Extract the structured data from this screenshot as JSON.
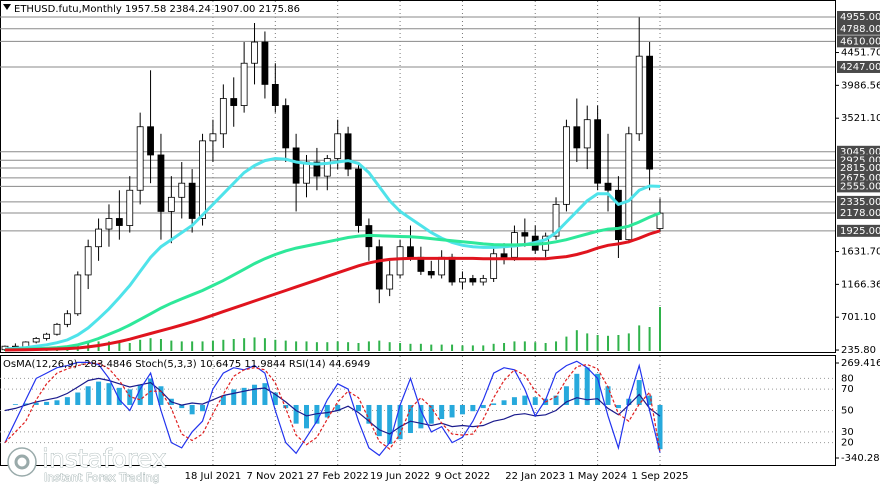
{
  "chart_data": [
    {
      "type": "candlestick",
      "title": "ETHUSD.futu,Monthly  1957.58 2384.24 1907.00 2175.86",
      "categories": [
        null,
        null,
        null,
        null,
        null,
        null,
        null,
        null,
        null,
        null,
        null,
        null,
        null,
        null,
        null,
        null,
        null,
        null,
        null,
        null,
        "18 Jul 2021",
        null,
        null,
        null,
        null,
        null,
        "7 Nov 2021",
        null,
        null,
        null,
        null,
        null,
        "27 Feb 2022",
        null,
        null,
        null,
        null,
        null,
        "19 Jun 2022",
        null,
        null,
        null,
        null,
        null,
        "9 Oct 2022",
        null,
        null,
        null,
        null,
        null,
        null,
        "22 Jan 2023",
        null,
        null,
        null,
        null,
        null,
        "1 May 2024",
        null,
        null,
        null,
        null,
        null,
        "1 Sep 2025"
      ],
      "ohlc": [
        [
          240,
          300,
          236,
          290
        ],
        [
          290,
          330,
          250,
          270
        ],
        [
          270,
          360,
          260,
          350
        ],
        [
          350,
          420,
          330,
          400
        ],
        [
          400,
          480,
          370,
          460
        ],
        [
          460,
          620,
          440,
          600
        ],
        [
          600,
          800,
          560,
          750
        ],
        [
          750,
          1350,
          720,
          1300
        ],
        [
          1300,
          1800,
          1100,
          1700
        ],
        [
          1700,
          2100,
          1500,
          1950
        ],
        [
          1950,
          2300,
          1700,
          2100
        ],
        [
          2100,
          2500,
          1800,
          2000
        ],
        [
          2000,
          2700,
          1900,
          2500
        ],
        [
          2500,
          3600,
          2300,
          3400
        ],
        [
          3400,
          4200,
          2600,
          3000
        ],
        [
          3000,
          3300,
          1800,
          2200
        ],
        [
          2200,
          2700,
          1750,
          2400
        ],
        [
          2400,
          2900,
          2100,
          2600
        ],
        [
          2600,
          2800,
          1900,
          2100
        ],
        [
          2100,
          3300,
          2000,
          3200
        ],
        [
          3200,
          3500,
          2900,
          3300
        ],
        [
          3300,
          4000,
          3100,
          3800
        ],
        [
          3800,
          4100,
          3400,
          3700
        ],
        [
          3700,
          4600,
          3600,
          4300
        ],
        [
          4300,
          4870,
          4000,
          4600
        ],
        [
          4600,
          4750,
          3800,
          4000
        ],
        [
          4000,
          4300,
          3600,
          3700
        ],
        [
          3700,
          3800,
          2900,
          3100
        ],
        [
          3100,
          3300,
          2200,
          2600
        ],
        [
          2600,
          3000,
          2400,
          2900
        ],
        [
          2900,
          3100,
          2500,
          2700
        ],
        [
          2700,
          3000,
          2500,
          2950
        ],
        [
          2950,
          3500,
          2800,
          3300
        ],
        [
          3300,
          3400,
          2700,
          2800
        ],
        [
          2800,
          2900,
          1900,
          2000
        ],
        [
          2000,
          2100,
          1500,
          1700
        ],
        [
          1700,
          1800,
          900,
          1100
        ],
        [
          1100,
          1500,
          1000,
          1300
        ],
        [
          1300,
          1800,
          1250,
          1700
        ],
        [
          1700,
          2000,
          1500,
          1550
        ],
        [
          1550,
          1700,
          1300,
          1350
        ],
        [
          1350,
          1500,
          1250,
          1300
        ],
        [
          1300,
          1650,
          1250,
          1550
        ],
        [
          1550,
          1600,
          1150,
          1200
        ],
        [
          1200,
          1350,
          1100,
          1250
        ],
        [
          1250,
          1300,
          1150,
          1200
        ],
        [
          1200,
          1300,
          1150,
          1250
        ],
        [
          1250,
          1700,
          1200,
          1600
        ],
        [
          1600,
          1750,
          1450,
          1550
        ],
        [
          1550,
          2000,
          1500,
          1900
        ],
        [
          1900,
          2100,
          1700,
          1850
        ],
        [
          1850,
          2000,
          1600,
          1650
        ],
        [
          1650,
          1900,
          1550,
          1850
        ],
        [
          1850,
          2400,
          1800,
          2300
        ],
        [
          2300,
          3500,
          2200,
          3400
        ],
        [
          3400,
          3800,
          2900,
          3100
        ],
        [
          3100,
          3700,
          2800,
          3500
        ],
        [
          3500,
          3700,
          2500,
          2600
        ],
        [
          2600,
          3300,
          2200,
          2500
        ],
        [
          2500,
          2700,
          1540,
          1800
        ],
        [
          1800,
          3400,
          1750,
          3300
        ],
        [
          3300,
          4950,
          3200,
          4400
        ],
        [
          4400,
          4600,
          2500,
          2800
        ],
        [
          1957.58,
          2384.24,
          1907,
          2175.86
        ]
      ],
      "series": [
        {
          "color": "#4fe3ea",
          "values": [
            250,
            260,
            270,
            290,
            310,
            340,
            380,
            450,
            550,
            680,
            820,
            980,
            1150,
            1350,
            1550,
            1700,
            1800,
            1900,
            2000,
            2150,
            2300,
            2450,
            2600,
            2750,
            2850,
            2920,
            2950,
            2940,
            2900,
            2880,
            2870,
            2880,
            2900,
            2920,
            2880,
            2750,
            2550,
            2350,
            2200,
            2100,
            2000,
            1900,
            1820,
            1760,
            1720,
            1700,
            1690,
            1690,
            1700,
            1710,
            1730,
            1760,
            1800,
            1900,
            2050,
            2200,
            2350,
            2450,
            2450,
            2300,
            2350,
            2500,
            2560,
            2555
          ]
        },
        {
          "color": "#2ee89a",
          "values": [
            240,
            245,
            250,
            255,
            260,
            270,
            285,
            310,
            350,
            400,
            460,
            520,
            590,
            670,
            750,
            830,
            900,
            960,
            1020,
            1080,
            1150,
            1220,
            1300,
            1380,
            1460,
            1530,
            1590,
            1640,
            1680,
            1710,
            1740,
            1770,
            1800,
            1830,
            1850,
            1860,
            1855,
            1850,
            1845,
            1840,
            1830,
            1815,
            1800,
            1785,
            1770,
            1755,
            1740,
            1730,
            1725,
            1725,
            1730,
            1735,
            1745,
            1770,
            1800,
            1840,
            1880,
            1920,
            1950,
            1960,
            1990,
            2050,
            2120,
            2178
          ]
        },
        {
          "color": "#e0141e",
          "values": [
            236,
            238,
            240,
            243,
            246,
            250,
            256,
            265,
            280,
            300,
            325,
            355,
            390,
            430,
            470,
            510,
            550,
            590,
            635,
            680,
            730,
            780,
            830,
            880,
            930,
            980,
            1030,
            1080,
            1130,
            1180,
            1230,
            1280,
            1330,
            1380,
            1430,
            1470,
            1500,
            1520,
            1530,
            1535,
            1535,
            1535,
            1535,
            1535,
            1535,
            1535,
            1530,
            1530,
            1530,
            1530,
            1530,
            1530,
            1530,
            1545,
            1560,
            1590,
            1630,
            1680,
            1720,
            1740,
            1770,
            1820,
            1880,
            1925
          ]
        }
      ],
      "volume": {
        "color": "#2fb24a",
        "values": [
          3,
          3,
          3,
          4,
          4,
          5,
          6,
          8,
          10,
          12,
          12,
          10,
          10,
          14,
          16,
          15,
          13,
          12,
          12,
          12,
          13,
          14,
          15,
          16,
          17,
          16,
          14,
          13,
          12,
          12,
          11,
          11,
          12,
          11,
          10,
          12,
          13,
          11,
          10,
          9,
          9,
          8,
          8,
          8,
          7,
          7,
          7,
          9,
          10,
          12,
          12,
          11,
          10,
          12,
          18,
          26,
          22,
          20,
          19,
          20,
          22,
          32,
          30,
          55
        ]
      },
      "ylim": [
        208,
        5196
      ],
      "yticks": [
        {
          "value": 4451.7,
          "label": "4451.70"
        },
        3986.56,
        {
          "value": 3521.1,
          "label": "3521.10"
        },
        {
          "value": 1631.7,
          "label": "1631.70"
        },
        1166.36,
        {
          "value": 701.1,
          "label": "701.10"
        },
        {
          "value": 235.8,
          "label": "235.80"
        }
      ],
      "levels": [
        {
          "value": 4955,
          "label": "4955.00"
        },
        {
          "value": 4788,
          "label": "4788.00"
        },
        {
          "value": 4610,
          "label": "4610.00"
        },
        {
          "value": 4247,
          "label": "4247.00"
        },
        {
          "value": 3045,
          "label": "3045.00"
        },
        {
          "value": 2925,
          "label": "2925.00"
        },
        {
          "value": 2815,
          "label": "2815.00"
        },
        {
          "value": 2675,
          "label": "2675.00"
        },
        {
          "value": 2555,
          "label": "2555.00"
        },
        {
          "value": 2335,
          "label": "2335.00"
        },
        {
          "value": 2178,
          "label": "2178.00"
        },
        {
          "value": 1925,
          "label": "1925.00"
        }
      ],
      "grid": true
    },
    {
      "type": "oscillator",
      "title": "OsMA(12,26,9) -283.4846  Stoch(5,3,3) 10.6475 11.9844  RSI(14) 44.6949",
      "ylim": [
        0,
        100
      ],
      "yticks": [
        80,
        70,
        50,
        30,
        20
      ],
      "y2lim": [
        -378.8,
        307.9
      ],
      "y2ticks": [
        269.4165,
        -340.2828
      ],
      "series": [
        {
          "axis": "y2",
          "color": "#27a9dc",
          "values": [
            0,
            5,
            10,
            15,
            20,
            30,
            50,
            80,
            120,
            150,
            140,
            110,
            100,
            130,
            170,
            120,
            40,
            -20,
            -60,
            -40,
            0,
            60,
            100,
            110,
            130,
            140,
            80,
            -20,
            -120,
            -150,
            -120,
            -80,
            -40,
            0,
            -40,
            -120,
            -200,
            -250,
            -220,
            -180,
            -150,
            -120,
            -90,
            -80,
            -60,
            -40,
            -20,
            10,
            30,
            50,
            60,
            50,
            40,
            60,
            120,
            200,
            240,
            200,
            120,
            -20,
            40,
            160,
            60,
            -283.4846
          ]
        },
        {
          "color": "#1a1a8c",
          "values": [
            50,
            52,
            55,
            58,
            60,
            62,
            66,
            72,
            78,
            80,
            78,
            75,
            72,
            74,
            76,
            68,
            58,
            55,
            57,
            56,
            60,
            64,
            66,
            68,
            70,
            71,
            65,
            58,
            50,
            45,
            47,
            48,
            50,
            54,
            48,
            40,
            32,
            28,
            35,
            40,
            38,
            36,
            38,
            35,
            36,
            35,
            36,
            40,
            42,
            46,
            47,
            45,
            46,
            50,
            58,
            62,
            60,
            61,
            52,
            46,
            55,
            65,
            52,
            44.6949
          ]
        },
        {
          "color": "#2233ee",
          "values": [
            20,
            40,
            60,
            80,
            85,
            90,
            92,
            95,
            95,
            93,
            80,
            60,
            50,
            70,
            85,
            50,
            20,
            15,
            30,
            40,
            70,
            85,
            90,
            88,
            92,
            85,
            50,
            20,
            10,
            25,
            40,
            60,
            75,
            70,
            40,
            15,
            8,
            20,
            55,
            80,
            50,
            30,
            35,
            20,
            25,
            40,
            60,
            85,
            90,
            88,
            70,
            45,
            60,
            85,
            92,
            96,
            90,
            80,
            45,
            15,
            60,
            92,
            50,
            10.6475
          ]
        },
        {
          "color": "#e02020",
          "dashed": true,
          "values": [
            20,
            30,
            40,
            60,
            75,
            85,
            89,
            92,
            94,
            94,
            89,
            78,
            63,
            60,
            68,
            68,
            52,
            28,
            22,
            28,
            47,
            65,
            82,
            88,
            90,
            88,
            76,
            52,
            27,
            18,
            25,
            42,
            58,
            68,
            62,
            42,
            21,
            14,
            28,
            52,
            62,
            53,
            38,
            28,
            27,
            28,
            42,
            62,
            78,
            88,
            83,
            68,
            58,
            63,
            79,
            91,
            93,
            89,
            72,
            47,
            40,
            56,
            67,
            11.9844
          ]
        }
      ]
    }
  ],
  "watermark": {
    "name": "instaforex",
    "tagline": "Instant Forex Trading"
  }
}
